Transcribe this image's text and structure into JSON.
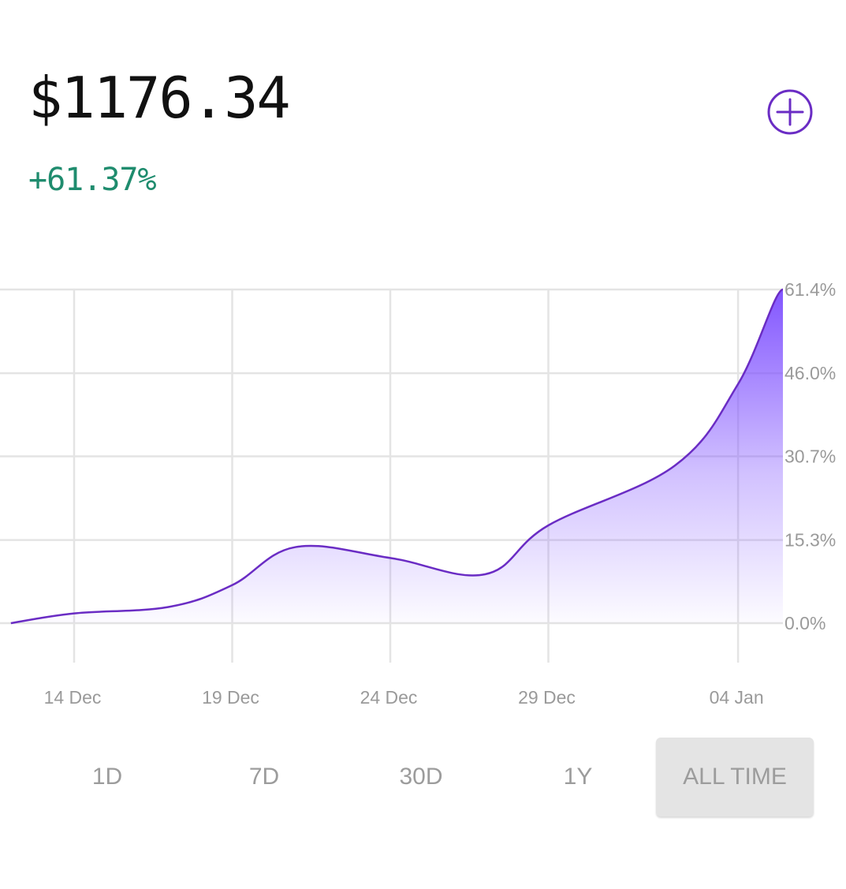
{
  "portfolio": {
    "balance": "$1176.34",
    "change": "+61.37%",
    "change_color": "#1f8c6e",
    "accent_color": "#6a2cc4",
    "add_icon": "plus-circle-icon"
  },
  "chart_data": {
    "type": "area",
    "x": [
      "12 Dec",
      "14 Dec",
      "17 Dec",
      "19 Dec",
      "21 Dec",
      "24 Dec",
      "27 Dec",
      "29 Dec",
      "02 Jan",
      "04 Jan",
      "07 Jan"
    ],
    "y": [
      0.0,
      1.8,
      3.0,
      7.0,
      14.0,
      12.0,
      9.0,
      18.0,
      29.0,
      44.0,
      61.4
    ],
    "x_ticks": [
      "14 Dec",
      "19 Dec",
      "24 Dec",
      "29 Dec",
      "04 Jan"
    ],
    "y_ticks": [
      "0.0%",
      "15.3%",
      "30.7%",
      "46.0%",
      "61.4%"
    ],
    "y_tick_values": [
      0,
      15.3,
      30.7,
      46.0,
      61.4
    ],
    "ylim": [
      0,
      61.4
    ],
    "grid": true,
    "line_color": "#6a2cc4",
    "fill_color": "#7c4dff"
  },
  "ranges": [
    "1D",
    "7D",
    "30D",
    "1Y",
    "ALL TIME"
  ],
  "selected_range": "ALL TIME"
}
